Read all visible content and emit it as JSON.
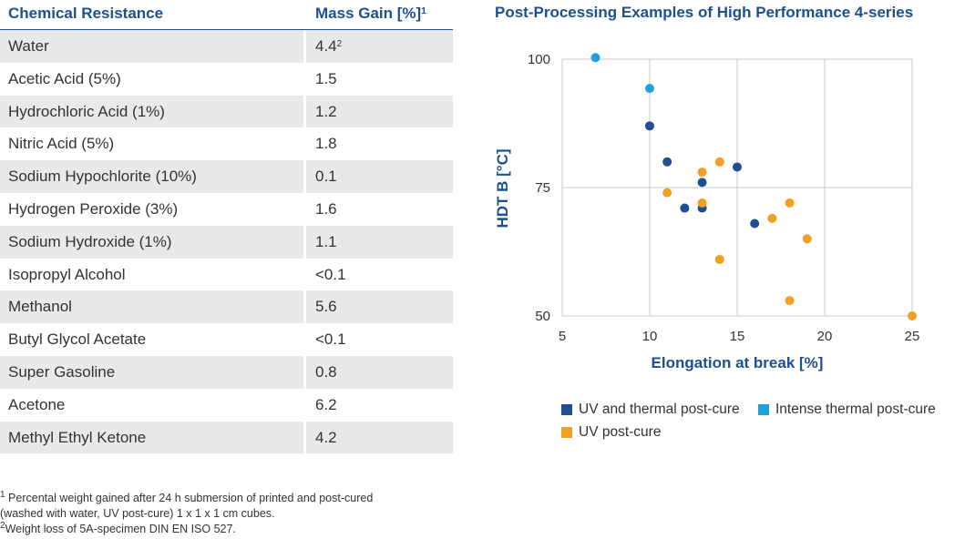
{
  "table": {
    "header_col1": "Chemical Resistance",
    "header_col2": "Mass Gain [%]",
    "header_col2_sup": "1",
    "rows": [
      {
        "chemical": "Water",
        "value": "4.4",
        "sup": "2"
      },
      {
        "chemical": "Acetic Acid (5%)",
        "value": "1.5"
      },
      {
        "chemical": "Hydrochloric Acid (1%)",
        "value": "1.2"
      },
      {
        "chemical": "Nitric Acid (5%)",
        "value": "1.8"
      },
      {
        "chemical": "Sodium Hypochlorite (10%)",
        "value": "0.1"
      },
      {
        "chemical": "Hydrogen Peroxide (3%)",
        "value": "1.6"
      },
      {
        "chemical": "Sodium Hydroxide (1%)",
        "value": "1.1"
      },
      {
        "chemical": "Isopropyl Alcohol",
        "value": "<0.1"
      },
      {
        "chemical": "Methanol",
        "value": "5.6"
      },
      {
        "chemical": "Butyl Glycol Acetate",
        "value": "<0.1"
      },
      {
        "chemical": "Super Gasoline",
        "value": "0.8"
      },
      {
        "chemical": "Acetone",
        "value": "6.2"
      },
      {
        "chemical": "Methyl Ethyl Ketone",
        "value": "4.2"
      }
    ]
  },
  "footnotes": {
    "note1_mark": "1",
    "note1_line1": "Percental weight gained after 24 h submersion of printed and post-cured",
    "note1_line2": "(washed with water, UV post-cure) 1 x 1 x 1 cm cubes.",
    "note2_mark": "2",
    "note2_line1": "Weight loss of 5A-specimen DIN EN ISO 527."
  },
  "chart_data": {
    "type": "scatter",
    "title": "Post-Processing Examples of High Performance 4-series",
    "xlabel": "Elongation at break  [%]",
    "ylabel": "HDT B  [°C]",
    "xlim": [
      5,
      25
    ],
    "ylim": [
      50,
      100
    ],
    "x_ticks": [
      5,
      10,
      15,
      20,
      25
    ],
    "y_ticks": [
      50,
      75,
      100
    ],
    "grid": true,
    "legend_position": "bottom",
    "series": [
      {
        "name": "UV and thermal post-cure",
        "color": "#1d4f91",
        "points": [
          [
            10,
            87
          ],
          [
            11,
            80
          ],
          [
            12,
            71
          ],
          [
            13,
            76
          ],
          [
            13,
            71
          ],
          [
            15,
            79
          ],
          [
            16,
            68
          ]
        ]
      },
      {
        "name": "Intense thermal post-cure",
        "color": "#1ea3dc",
        "points": [
          [
            6.9,
            100.3
          ],
          [
            10,
            94.3
          ]
        ]
      },
      {
        "name": "UV post-cure",
        "color": "#f2a023",
        "points": [
          [
            11,
            74
          ],
          [
            13,
            78
          ],
          [
            13,
            72
          ],
          [
            14,
            80
          ],
          [
            14,
            61
          ],
          [
            17,
            69
          ],
          [
            18,
            72
          ],
          [
            18,
            53
          ],
          [
            19,
            65
          ],
          [
            25,
            50
          ]
        ]
      }
    ]
  }
}
